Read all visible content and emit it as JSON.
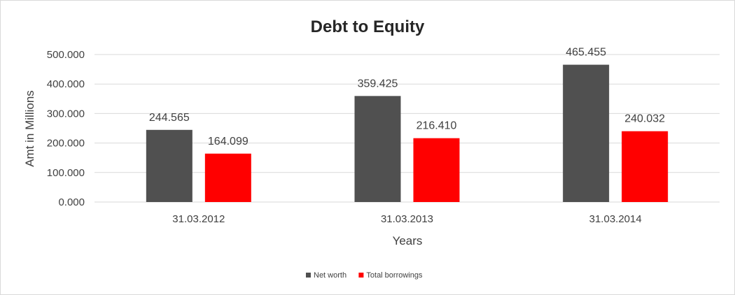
{
  "chart_data": {
    "type": "bar",
    "title": "Debt to Equity",
    "xlabel": "Years",
    "ylabel": "Amt in Millions",
    "categories": [
      "31.03.2012",
      "31.03.2013",
      "31.03.2014"
    ],
    "series": [
      {
        "name": "Net worth",
        "color": "#505050",
        "values": [
          244.565,
          359.425,
          465.455
        ],
        "labels": [
          "244.565",
          "359.425",
          "465.455"
        ]
      },
      {
        "name": "Total borrowings",
        "color": "#ff0000",
        "values": [
          164.099,
          216.41,
          240.032
        ],
        "labels": [
          "164.099",
          "216.410",
          "240.032"
        ]
      }
    ],
    "ylim": [
      0,
      500
    ],
    "yticks": [
      0,
      100,
      200,
      300,
      400,
      500
    ],
    "ytick_labels": [
      "0.000",
      "100.000",
      "200.000",
      "300.000",
      "400.000",
      "500.000"
    ],
    "grid": true,
    "legend_position": "bottom"
  }
}
